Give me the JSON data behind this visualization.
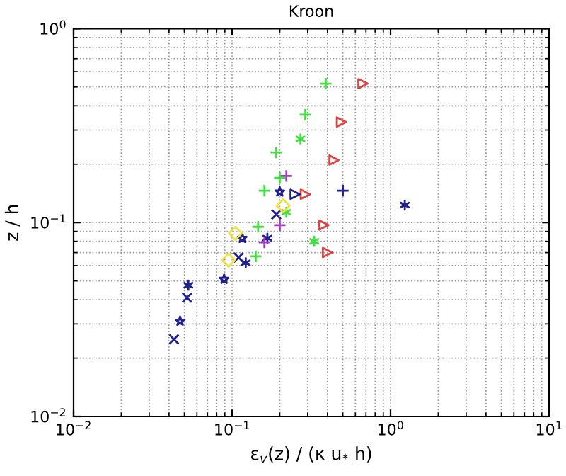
{
  "chart_data": {
    "type": "scatter",
    "title": "Kroon",
    "xlabel": "ε$_{v}$(z) / (κ u$_{*}$ h)",
    "ylabel": "z / h",
    "log": "xy",
    "grid": true,
    "xlim": [
      0.01,
      10
    ],
    "ylim": [
      0.01,
      1
    ],
    "xticks": [
      {
        "value": 0.01,
        "label": "10$^{−2}$"
      },
      {
        "value": 0.1,
        "label": "10$^{−1}$"
      },
      {
        "value": 1,
        "label": "10$^{0}$"
      },
      {
        "value": 10,
        "label": "10$^{1}$"
      }
    ],
    "yticks": [
      {
        "value": 0.01,
        "label": "10$^{−2}$"
      },
      {
        "value": 0.1,
        "label": "10$^{−1}$"
      },
      {
        "value": 1,
        "label": "10$^{0}$"
      }
    ],
    "series": [
      {
        "color": "#e04040",
        "marker": "triangle",
        "x": [
          0.67,
          0.49,
          0.44,
          0.29,
          0.38,
          0.4
        ],
        "values": [
          0.52,
          0.33,
          0.21,
          0.14,
          0.097,
          0.07
        ]
      },
      {
        "color": "#40e040",
        "marker": "plus",
        "x": [
          0.39,
          0.29,
          0.19,
          0.2,
          0.16,
          0.146,
          0.141
        ],
        "values": [
          0.52,
          0.36,
          0.23,
          0.17,
          0.146,
          0.095,
          0.067
        ]
      },
      {
        "color": "#40e040",
        "x": [
          0.27,
          0.22,
          0.33
        ],
        "values": [
          0.27,
          0.113,
          0.08
        ]
      },
      {
        "color": "#202090",
        "marker": "star",
        "x": [
          0.2,
          0.116,
          0.089,
          0.047
        ],
        "values": [
          0.144,
          0.083,
          0.051,
          0.031
        ]
      },
      {
        "color": "#202090",
        "marker": "triangle",
        "x": [
          0.25
        ],
        "values": [
          0.14
        ]
      },
      {
        "color": "#202090",
        "marker": "plus",
        "x": [
          0.5
        ],
        "values": [
          0.146
        ]
      },
      {
        "color": "#202090",
        "x": [
          1.23,
          0.167,
          0.122,
          0.053
        ],
        "values": [
          0.123,
          0.083,
          0.062,
          0.0475
        ]
      },
      {
        "color": "#202090",
        "marker": "cross",
        "x": [
          0.19,
          0.11,
          0.052,
          0.043
        ],
        "values": [
          0.11,
          0.066,
          0.041,
          0.025
        ]
      },
      {
        "color": "#a040c0",
        "marker": "plus",
        "x": [
          0.22,
          0.16,
          0.2
        ],
        "values": [
          0.174,
          0.079,
          0.097
        ]
      },
      {
        "color": "#f0e040",
        "marker": "diamond",
        "x": [
          0.21,
          0.105,
          0.095
        ],
        "values": [
          0.122,
          0.088,
          0.064
        ]
      }
    ]
  }
}
